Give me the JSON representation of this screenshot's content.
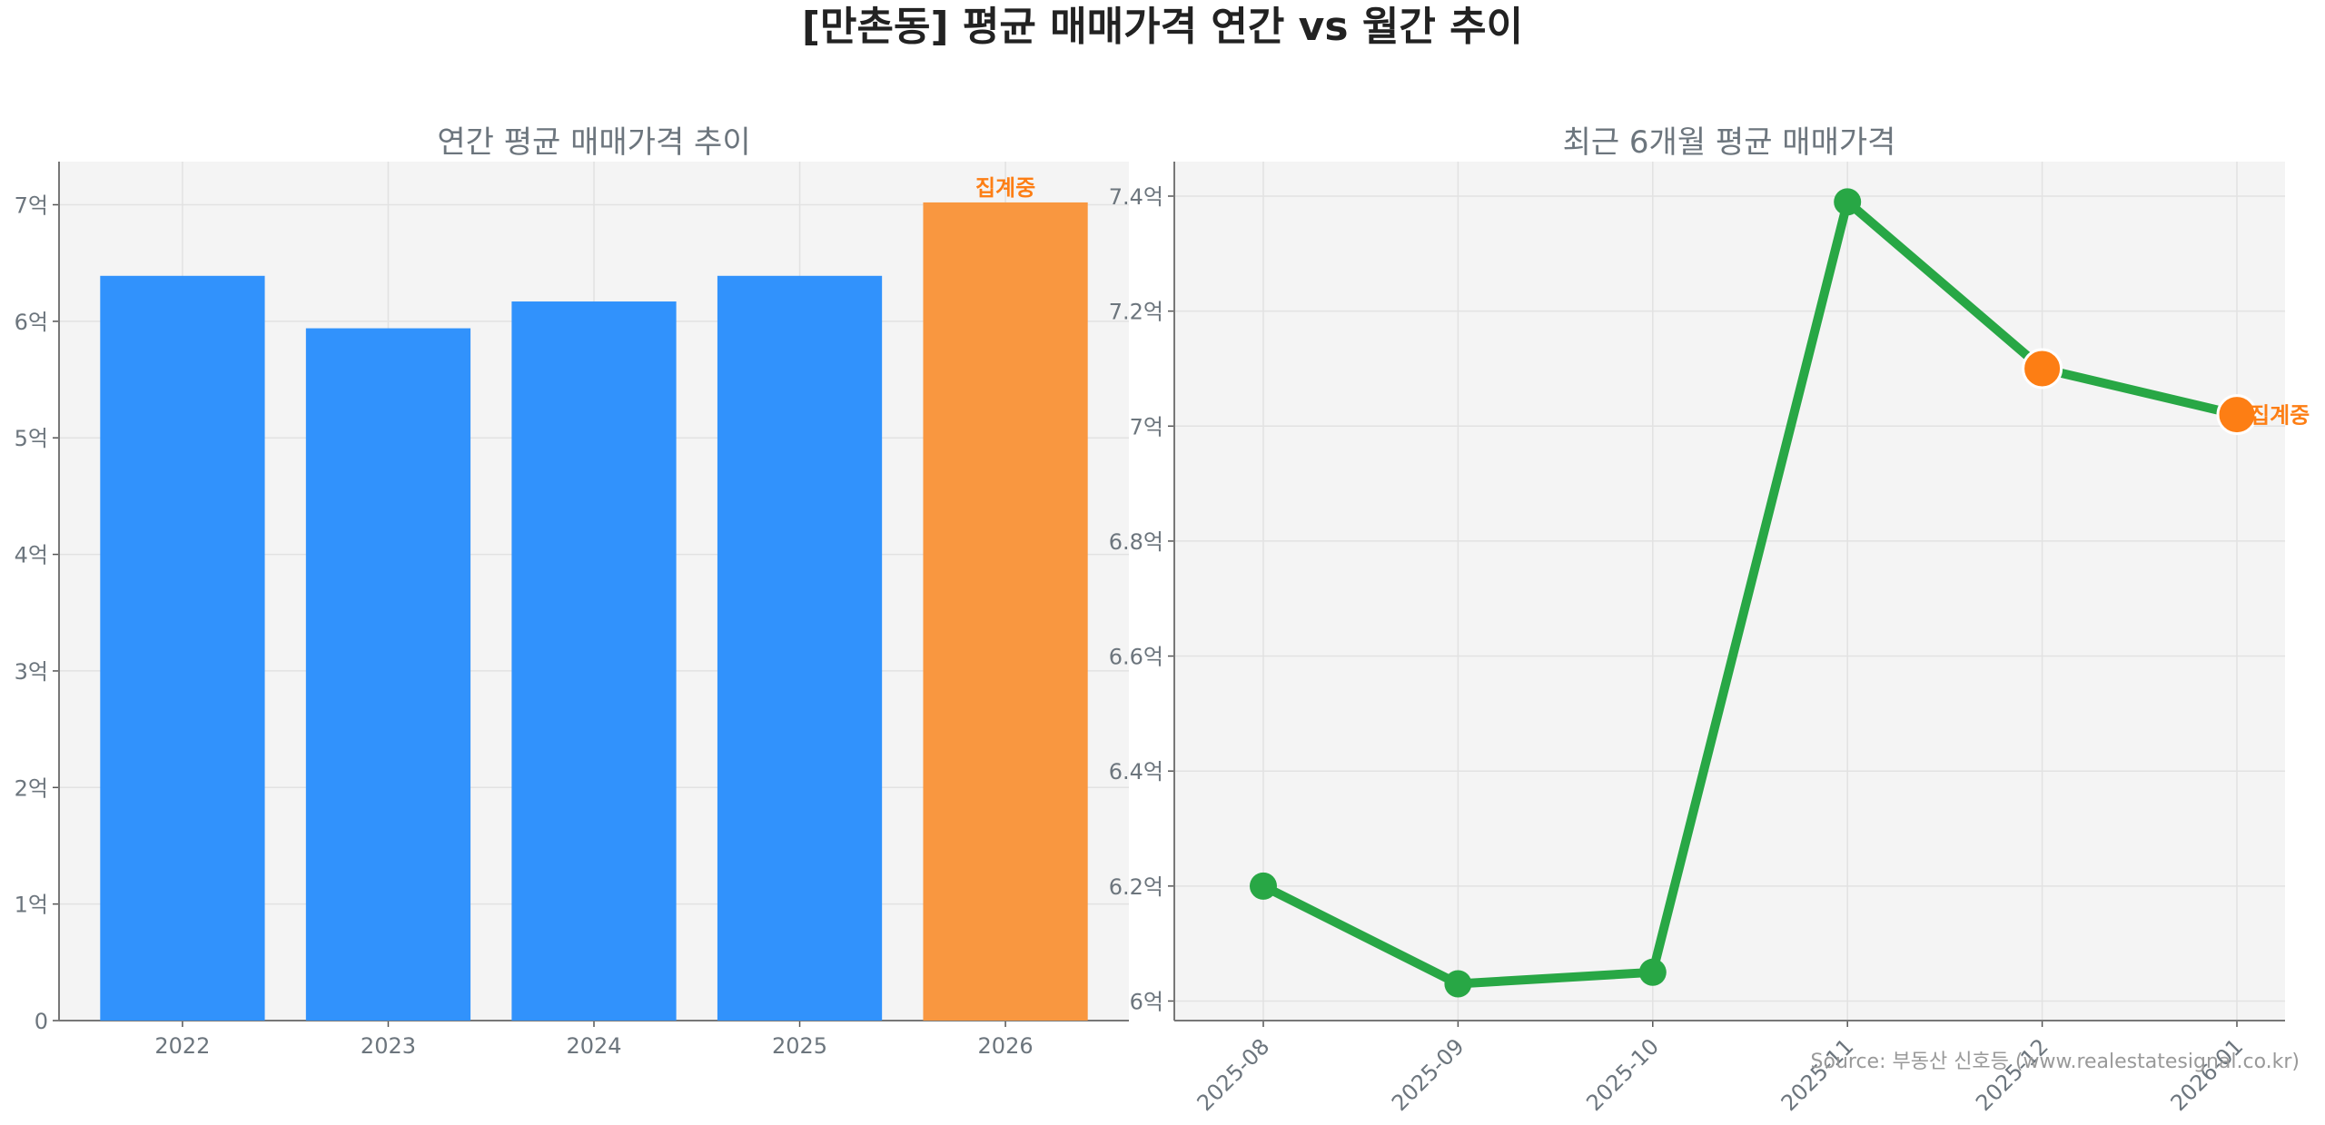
{
  "title": "[만촌동] 평균 매매가격 연간 vs 월간 추이",
  "source": "Source: 부동산 신호등 (www.realestatesignal.co.kr)",
  "colors": {
    "bar": "#3192fc",
    "bar_partial": "#f99740",
    "line": "#28a745",
    "marker_partial": "#fd7e14",
    "annot": "#fd7e14",
    "axes_bg": "#f4f4f4",
    "text": "#6c757d"
  },
  "chart_data": [
    {
      "type": "bar",
      "title": "연간 평균 매매가격 추이",
      "categories": [
        "2022",
        "2023",
        "2024",
        "2025",
        "2026"
      ],
      "values": [
        6.39,
        5.94,
        6.17,
        6.39,
        7.02
      ],
      "partial": [
        false,
        false,
        false,
        false,
        true
      ],
      "annotation": "집계중",
      "ylim": [
        0,
        7.37
      ],
      "yticks": [
        0,
        1,
        2,
        3,
        4,
        5,
        6,
        7
      ],
      "ytick_labels": [
        "0",
        "1억",
        "2억",
        "3억",
        "4억",
        "5억",
        "6억",
        "7억"
      ],
      "xlabel": "",
      "ylabel": "",
      "grid": true
    },
    {
      "type": "line",
      "title": "최근 6개월 평균 매매가격",
      "categories": [
        "2025-08",
        "2025-09",
        "2025-10",
        "2025-11",
        "2025-12",
        "2026-01"
      ],
      "values": [
        6.2,
        6.03,
        6.05,
        7.39,
        7.1,
        7.02
      ],
      "partial": [
        false,
        false,
        false,
        false,
        true,
        true
      ],
      "annotation": "집계중",
      "ylim": [
        5.966,
        7.46
      ],
      "yticks": [
        6.0,
        6.2,
        6.4,
        6.6,
        6.8,
        7.0,
        7.2,
        7.4
      ],
      "ytick_labels": [
        "6억",
        "6.2억",
        "6.4억",
        "6.6억",
        "6.8억",
        "7억",
        "7.2억",
        "7.4억"
      ],
      "xlabel": "",
      "ylabel": "",
      "grid": true
    }
  ]
}
